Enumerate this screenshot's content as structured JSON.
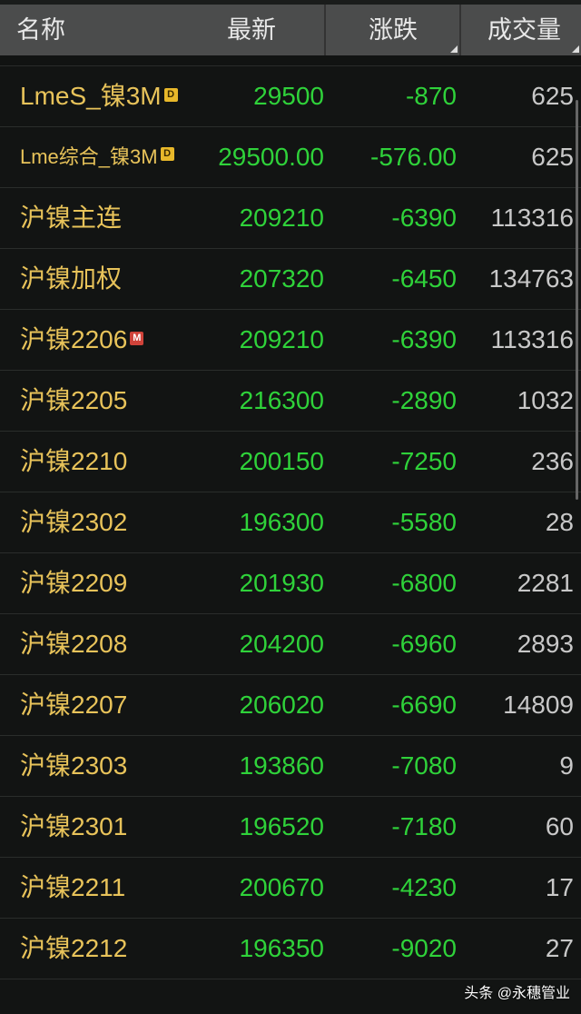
{
  "header": {
    "name": "名称",
    "latest": "最新",
    "change": "涨跌",
    "volume": "成交量"
  },
  "rows": [
    {
      "name": "LmeS_镍3M",
      "badge": "D",
      "latest": "29500",
      "change": "-870",
      "volume": "625"
    },
    {
      "name": "Lme综合_镍3M",
      "badge": "D",
      "latest": "29500.00",
      "change": "-576.00",
      "volume": "625"
    },
    {
      "name": "沪镍主连",
      "badge": "",
      "latest": "209210",
      "change": "-6390",
      "volume": "113316"
    },
    {
      "name": "沪镍加权",
      "badge": "",
      "latest": "207320",
      "change": "-6450",
      "volume": "134763"
    },
    {
      "name": "沪镍2206",
      "badge": "M",
      "latest": "209210",
      "change": "-6390",
      "volume": "113316"
    },
    {
      "name": "沪镍2205",
      "badge": "",
      "latest": "216300",
      "change": "-2890",
      "volume": "1032"
    },
    {
      "name": "沪镍2210",
      "badge": "",
      "latest": "200150",
      "change": "-7250",
      "volume": "236"
    },
    {
      "name": "沪镍2302",
      "badge": "",
      "latest": "196300",
      "change": "-5580",
      "volume": "28"
    },
    {
      "name": "沪镍2209",
      "badge": "",
      "latest": "201930",
      "change": "-6800",
      "volume": "2281"
    },
    {
      "name": "沪镍2208",
      "badge": "",
      "latest": "204200",
      "change": "-6960",
      "volume": "2893"
    },
    {
      "name": "沪镍2207",
      "badge": "",
      "latest": "206020",
      "change": "-6690",
      "volume": "14809"
    },
    {
      "name": "沪镍2303",
      "badge": "",
      "latest": "193860",
      "change": "-7080",
      "volume": "9"
    },
    {
      "name": "沪镍2301",
      "badge": "",
      "latest": "196520",
      "change": "-7180",
      "volume": "60"
    },
    {
      "name": "沪镍2211",
      "badge": "",
      "latest": "200670",
      "change": "-4230",
      "volume": "17"
    },
    {
      "name": "沪镍2212",
      "badge": "",
      "latest": "196350",
      "change": "-9020",
      "volume": "27"
    }
  ],
  "watermark": "头条 @永穗管业",
  "colors": {
    "name": "#e8c35a",
    "down": "#2fd23a",
    "volume": "#c8c8c8",
    "header_bg": "#4b4c4c",
    "bg": "#121413"
  }
}
